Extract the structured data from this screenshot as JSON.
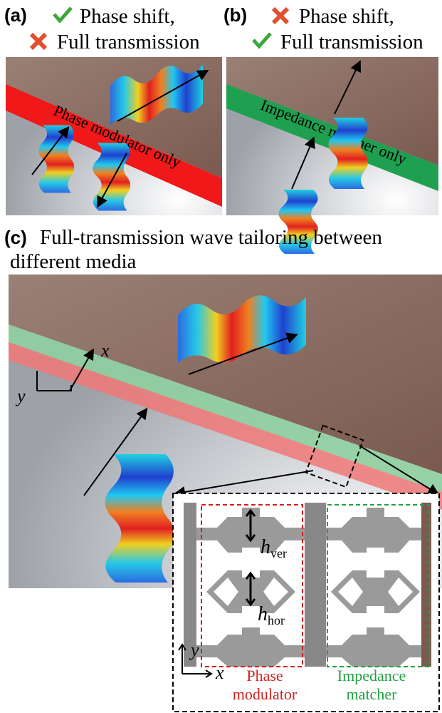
{
  "panel_a": {
    "label": "(a)",
    "check_text": "Phase shift,",
    "cross_text": "Full transmission",
    "band_label": "Phase modulator only"
  },
  "panel_b": {
    "label": "(b)",
    "cross_text": "Phase shift,",
    "check_text": "Full transmission",
    "band_label": "Impedance matcher only"
  },
  "panel_c": {
    "label": "(c)",
    "title_line1": "Full-transmission wave tailoring between",
    "title_line2": "different media",
    "axis_x": "x",
    "axis_y": "y"
  },
  "inset": {
    "h_ver": {
      "symbol": "h",
      "subscript": "ver"
    },
    "h_hor": {
      "symbol": "h",
      "subscript": "hor"
    },
    "axis_x": "x",
    "axis_y": "y",
    "phase_label_line1": "Phase",
    "phase_label_line2": "modulator",
    "impedance_label_line1": "Impedance",
    "impedance_label_line2": "matcher"
  }
}
